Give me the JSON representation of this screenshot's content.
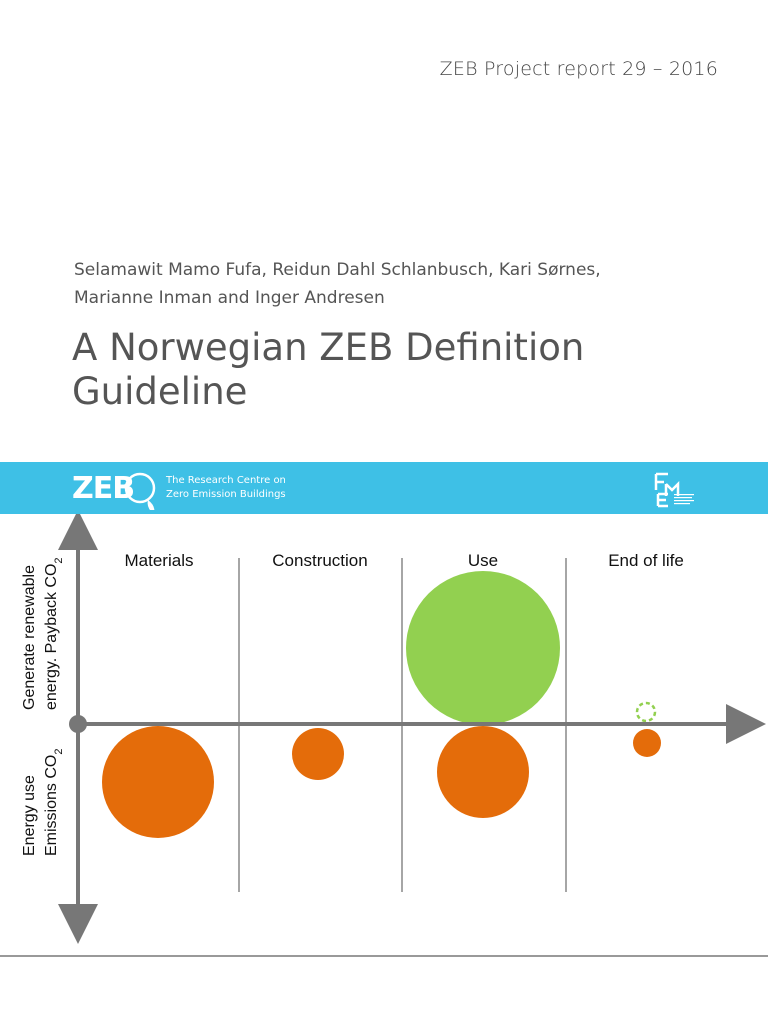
{
  "header": {
    "report_label": "ZEB Project report 29 – 2016"
  },
  "authors": {
    "line1": "Selamawit Mamo Fufa, Reidun Dahl Schlanbusch, Kari Sørnes,",
    "line2": "Marianne Inman and Inger Andresen"
  },
  "title": {
    "line1": "A Norwegian ZEB Definition",
    "line2": "Guideline"
  },
  "banner": {
    "logo_text": "ZEB",
    "centre_line1": "The Research Centre on",
    "centre_line2": "Zero Emission Buildings",
    "colors": {
      "background": "#3ec0e6",
      "text": "#ffffff"
    }
  },
  "diagram": {
    "columns": [
      "Materials",
      "Construction",
      "Use",
      "End of life"
    ],
    "y_axis_upper": {
      "line1": "Generate renewable",
      "line2": "energy. Payback CO",
      "subscript": "2"
    },
    "y_axis_lower": {
      "line1": "Energy use",
      "line2": "Emissions CO",
      "subscript": "2"
    },
    "colors": {
      "emission": "#e46c0a",
      "generation": "#92d050",
      "axis": "#777777"
    }
  }
}
